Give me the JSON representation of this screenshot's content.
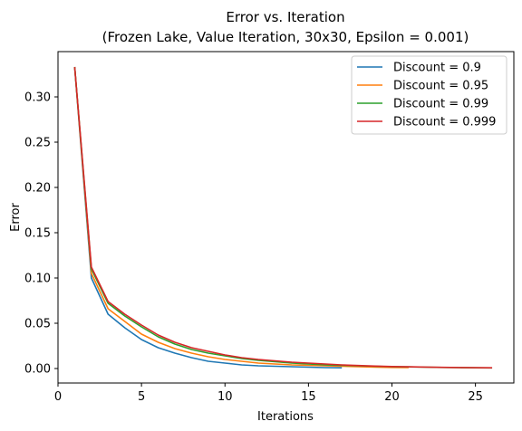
{
  "chart_data": {
    "type": "line",
    "title": "Error vs. Iteration",
    "subtitle": "(Frozen Lake, Value Iteration, 30x30, Epsilon = 0.001)",
    "xlabel": "Iterations",
    "ylabel": "Error",
    "xlim": [
      0,
      27.3
    ],
    "ylim": [
      -0.016,
      0.35
    ],
    "xticks": [
      0,
      5,
      10,
      15,
      20,
      25
    ],
    "xtick_labels": [
      "0",
      "5",
      "10",
      "15",
      "20",
      "25"
    ],
    "yticks": [
      0.0,
      0.05,
      0.1,
      0.15,
      0.2,
      0.25,
      0.3
    ],
    "ytick_labels": [
      "0.00",
      "0.05",
      "0.10",
      "0.15",
      "0.20",
      "0.25",
      "0.30"
    ],
    "grid": false,
    "legend_position": "top-right",
    "series": [
      {
        "name": "Discount = 0.9",
        "color": "#1f77b4",
        "x": [
          1,
          2,
          3,
          4,
          5,
          6,
          7,
          8,
          9,
          10,
          11,
          12,
          13,
          14,
          15,
          16,
          17
        ],
        "y": [
          0.333,
          0.1,
          0.06,
          0.045,
          0.032,
          0.023,
          0.017,
          0.012,
          0.008,
          0.006,
          0.004,
          0.003,
          0.0025,
          0.002,
          0.0015,
          0.001,
          0.0008
        ]
      },
      {
        "name": "Discount = 0.95",
        "color": "#ff7f0e",
        "x": [
          1,
          2,
          3,
          4,
          5,
          6,
          7,
          8,
          9,
          10,
          11,
          12,
          13,
          14,
          15,
          16,
          17,
          18,
          19,
          20,
          21
        ],
        "y": [
          0.333,
          0.105,
          0.066,
          0.052,
          0.038,
          0.029,
          0.022,
          0.017,
          0.013,
          0.01,
          0.008,
          0.006,
          0.005,
          0.004,
          0.0035,
          0.003,
          0.0025,
          0.002,
          0.0015,
          0.0012,
          0.001
        ]
      },
      {
        "name": "Discount = 0.99",
        "color": "#2ca02c",
        "x": [
          1,
          2,
          3,
          4,
          5,
          6,
          7,
          8,
          9,
          10,
          11,
          12,
          13,
          14,
          15,
          16,
          17,
          18,
          19,
          20,
          21,
          22,
          23,
          24,
          25,
          26
        ],
        "y": [
          0.333,
          0.11,
          0.072,
          0.058,
          0.046,
          0.035,
          0.027,
          0.021,
          0.017,
          0.014,
          0.011,
          0.009,
          0.0075,
          0.006,
          0.005,
          0.004,
          0.0035,
          0.003,
          0.0025,
          0.002,
          0.0018,
          0.0015,
          0.0012,
          0.001,
          0.0008,
          0.0007
        ]
      },
      {
        "name": "Discount = 0.999",
        "color": "#d62728",
        "x": [
          1,
          2,
          3,
          4,
          5,
          6,
          7,
          8,
          9,
          10,
          11,
          12,
          13,
          14,
          15,
          16,
          17,
          18,
          19,
          20,
          21,
          22,
          23,
          24,
          25,
          26
        ],
        "y": [
          0.333,
          0.112,
          0.074,
          0.06,
          0.048,
          0.037,
          0.029,
          0.023,
          0.019,
          0.015,
          0.012,
          0.01,
          0.0085,
          0.007,
          0.006,
          0.005,
          0.004,
          0.0033,
          0.0027,
          0.0022,
          0.0019,
          0.0016,
          0.0013,
          0.0011,
          0.0009,
          0.0008
        ]
      }
    ]
  }
}
